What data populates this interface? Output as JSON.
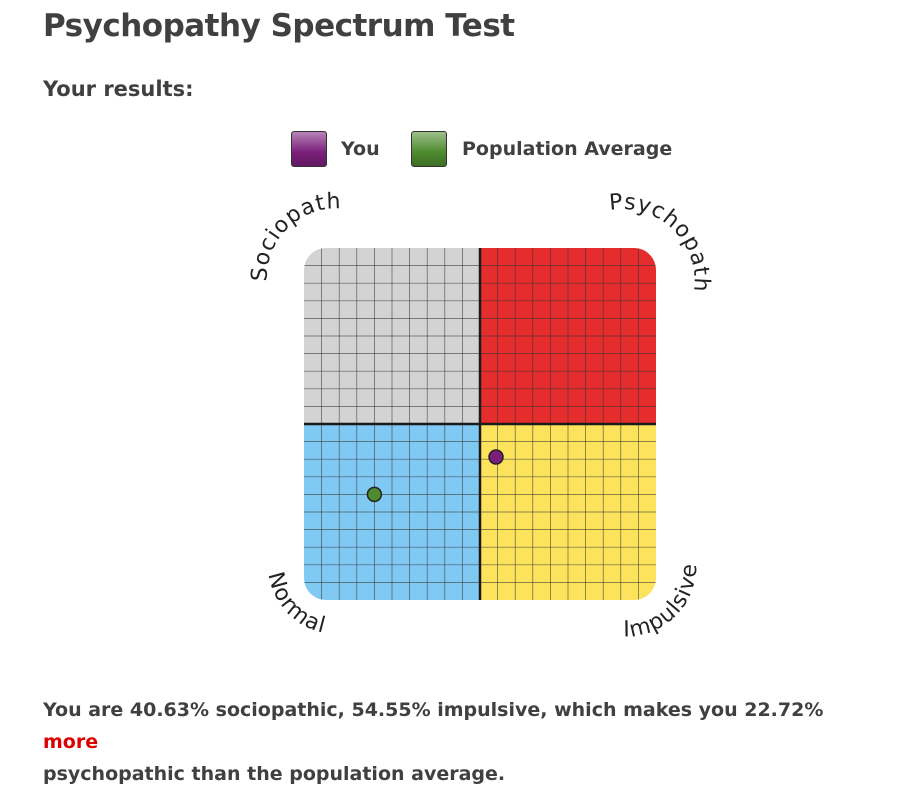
{
  "page": {
    "title": "Psychopathy Spectrum Test",
    "results_heading": "Your results:"
  },
  "legend": {
    "you_label": "You",
    "population_label": "Population Average",
    "you_color": "#7a1f7a",
    "population_color": "#4e8a2e"
  },
  "summary": {
    "part1": "You are 40.63% sociopathic, 54.55% impulsive, which makes you 22.72%",
    "emphasis": "more",
    "part2": "psychopathic than the population average.",
    "emphasis_color": "#dd0000"
  },
  "chart_data": {
    "type": "scatter",
    "x_dimension": "impulsive (%)",
    "y_dimension": "sociopathic (%)",
    "xlim": [
      0,
      100
    ],
    "ylim": [
      0,
      100
    ],
    "grid": true,
    "grid_divisions": 20,
    "quadrants": [
      {
        "label": "Sociopath",
        "position": "top-left",
        "color": "#d3d3d3"
      },
      {
        "label": "Psychopath",
        "position": "top-right",
        "color": "#e52d2d"
      },
      {
        "label": "Normal",
        "position": "bottom-left",
        "color": "#80c9f3"
      },
      {
        "label": "Impulsive",
        "position": "bottom-right",
        "color": "#fde35c"
      }
    ],
    "series": [
      {
        "name": "You",
        "color": "#7a1f7a",
        "x": 54.55,
        "y": 40.63
      },
      {
        "name": "Population Average",
        "color": "#4e8a2e",
        "x": 20,
        "y": 30
      }
    ],
    "legend_position": "top"
  }
}
